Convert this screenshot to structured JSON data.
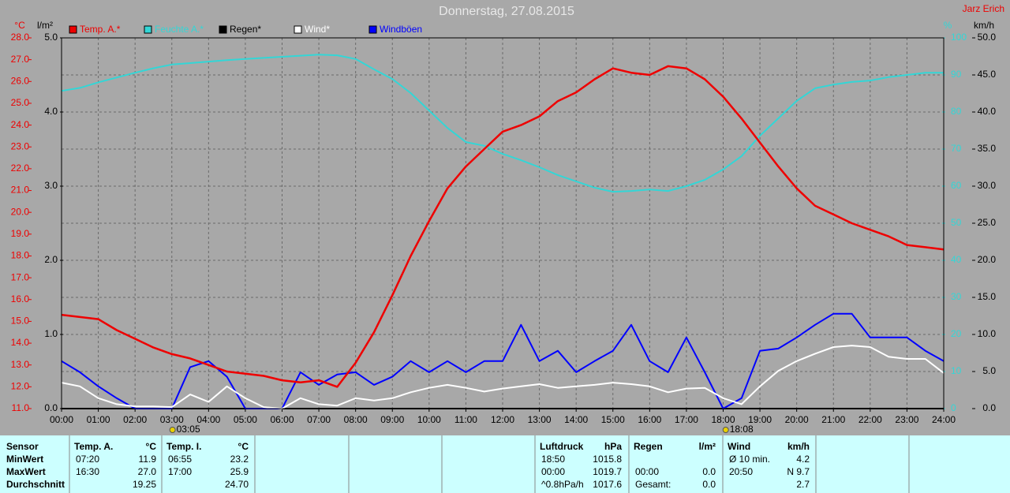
{
  "chart_data": {
    "type": "line",
    "title": "Donnerstag, 27.08.2015",
    "author": "Jarz Erich",
    "ylabel": "°C",
    "y2label": "%",
    "y3label": "l/m²",
    "y4label": "km/h",
    "ylim": [
      11,
      28
    ],
    "yticks": [
      {
        "value": 11,
        "label": "11.0"
      },
      {
        "value": 12,
        "label": "12.0"
      },
      {
        "value": 13,
        "label": "13.0"
      },
      {
        "value": 14,
        "label": "14.0"
      },
      {
        "value": 15,
        "label": "15.0"
      },
      {
        "value": 16,
        "label": "16.0"
      },
      {
        "value": 17,
        "label": "17.0"
      },
      {
        "value": 18,
        "label": "18.0"
      },
      {
        "value": 19,
        "label": "19.0"
      },
      {
        "value": 20,
        "label": "20.0"
      },
      {
        "value": 21,
        "label": "21.0"
      },
      {
        "value": 22,
        "label": "22.0"
      },
      {
        "value": 23,
        "label": "23.0"
      },
      {
        "value": 24,
        "label": "24.0"
      },
      {
        "value": 25,
        "label": "25.0"
      },
      {
        "value": 26,
        "label": "26.0"
      },
      {
        "value": 27,
        "label": "27.0"
      },
      {
        "value": 28,
        "label": "28.0"
      }
    ],
    "y2lim": [
      0,
      100
    ],
    "y2ticks": [
      0,
      10,
      20,
      30,
      40,
      50,
      60,
      70,
      80,
      90,
      100
    ],
    "y3lim": [
      0,
      5
    ],
    "y3ticks": [
      {
        "value": 0,
        "label": "0.0"
      },
      {
        "value": 1,
        "label": "1.0"
      },
      {
        "value": 2,
        "label": "2.0"
      },
      {
        "value": 3,
        "label": "3.0"
      },
      {
        "value": 4,
        "label": "4.0"
      },
      {
        "value": 5,
        "label": "5.0"
      }
    ],
    "y4lim": [
      0,
      50
    ],
    "y4ticks": [
      {
        "value": 0,
        "label": "0.0"
      },
      {
        "value": 5,
        "label": "5.0"
      },
      {
        "value": 10,
        "label": "10.0"
      },
      {
        "value": 15,
        "label": "15.0"
      },
      {
        "value": 20,
        "label": "20.0"
      },
      {
        "value": 25,
        "label": "25.0"
      },
      {
        "value": 30,
        "label": "30.0"
      },
      {
        "value": 35,
        "label": "35.0"
      },
      {
        "value": 40,
        "label": "40.0"
      },
      {
        "value": 45,
        "label": "45.0"
      },
      {
        "value": 50,
        "label": "50.0"
      }
    ],
    "xlim": [
      0,
      24
    ],
    "xticks": [
      {
        "value": 0,
        "label": "00:00"
      },
      {
        "value": 1,
        "label": "01:00"
      },
      {
        "value": 2,
        "label": "02:00"
      },
      {
        "value": 3,
        "label": "03:00"
      },
      {
        "value": 4,
        "label": "04:00"
      },
      {
        "value": 5,
        "label": "05:00"
      },
      {
        "value": 6,
        "label": "06:00"
      },
      {
        "value": 7,
        "label": "07:00"
      },
      {
        "value": 8,
        "label": "08:00"
      },
      {
        "value": 9,
        "label": "09:00"
      },
      {
        "value": 10,
        "label": "10:00"
      },
      {
        "value": 11,
        "label": "11:00"
      },
      {
        "value": 12,
        "label": "12:00"
      },
      {
        "value": 13,
        "label": "13:00"
      },
      {
        "value": 14,
        "label": "14:00"
      },
      {
        "value": 15,
        "label": "15:00"
      },
      {
        "value": 16,
        "label": "16:00"
      },
      {
        "value": 17,
        "label": "17:00"
      },
      {
        "value": 18,
        "label": "18:00"
      },
      {
        "value": 19,
        "label": "19:00"
      },
      {
        "value": 20,
        "label": "20:00"
      },
      {
        "value": 21,
        "label": "21:00"
      },
      {
        "value": 22,
        "label": "22:00"
      },
      {
        "value": 23,
        "label": "23:00"
      },
      {
        "value": 24,
        "label": "24:00"
      }
    ],
    "grid": true,
    "annotations": [
      {
        "label": "03:05",
        "x": 3.0833
      },
      {
        "label": "18:08",
        "x": 18.1333
      }
    ],
    "x": [
      0,
      0.5,
      1,
      1.5,
      2,
      2.5,
      3,
      3.5,
      4,
      4.5,
      5,
      5.5,
      6,
      6.5,
      7,
      7.5,
      8,
      8.5,
      9,
      9.5,
      10,
      10.5,
      11,
      11.5,
      12,
      12.5,
      13,
      13.5,
      14,
      14.5,
      15,
      15.5,
      16,
      16.5,
      17,
      17.5,
      18,
      18.5,
      19,
      19.5,
      20,
      20.5,
      21,
      21.5,
      22,
      22.5,
      23,
      23.5,
      24
    ],
    "series": [
      {
        "name": "Feuchte A.*",
        "color": "#33d6d6",
        "axis": "y2",
        "values": [
          85.7,
          86.5,
          88,
          89.3,
          90.6,
          91.8,
          92.8,
          93.2,
          93.6,
          94,
          94.3,
          94.6,
          94.9,
          95.2,
          95.5,
          95.3,
          94.3,
          91.5,
          88.9,
          85.1,
          80.4,
          75.7,
          71.9,
          70.9,
          68.7,
          67,
          65.1,
          63,
          61.3,
          59.6,
          58.5,
          58.7,
          59.1,
          58.7,
          60,
          61.7,
          64.5,
          68.1,
          73.6,
          78.3,
          83,
          86.4,
          87.4,
          88.1,
          88.5,
          89.4,
          90,
          90.6,
          90.6
        ]
      },
      {
        "name": "Regen*",
        "color": "#000000",
        "axis": "y3",
        "values": [
          0,
          0,
          0,
          0,
          0,
          0,
          0,
          0,
          0,
          0,
          0,
          0,
          0,
          0,
          0,
          0,
          0,
          0,
          0,
          0,
          0,
          0,
          0,
          0,
          0,
          0,
          0,
          0,
          0,
          0,
          0,
          0,
          0,
          0,
          0,
          0,
          0,
          0,
          0,
          0,
          0,
          0,
          0,
          0,
          0,
          0,
          0,
          0,
          0
        ]
      },
      {
        "name": "Windböen",
        "color": "#0000ff",
        "axis": "y4",
        "values": [
          6.4,
          4.9,
          3,
          1.4,
          0,
          0,
          0,
          5.6,
          6.4,
          4.3,
          0,
          0,
          0,
          4.9,
          3.2,
          4.6,
          4.9,
          3.2,
          4.3,
          6.4,
          4.9,
          6.4,
          4.9,
          6.4,
          6.4,
          11.3,
          6.4,
          7.8,
          4.9,
          6.4,
          7.8,
          11.3,
          6.4,
          4.9,
          9.6,
          4.9,
          0,
          1.4,
          7.8,
          8.1,
          9.6,
          11.3,
          12.8,
          12.8,
          9.6,
          9.6,
          9.6,
          7.8,
          6.4
        ]
      },
      {
        "name": "Wind*",
        "color": "#ffffff",
        "axis": "y4",
        "values": [
          3.5,
          3,
          1.4,
          0.6,
          0.3,
          0.3,
          0.2,
          1.9,
          0.9,
          3,
          1.4,
          0.2,
          0,
          1.4,
          0.6,
          0.4,
          1.4,
          1.1,
          1.4,
          2.2,
          2.8,
          3.2,
          2.8,
          2.3,
          2.7,
          3,
          3.3,
          2.8,
          3,
          3.2,
          3.5,
          3.3,
          3,
          2.2,
          2.7,
          2.8,
          1.4,
          0.6,
          3,
          5.1,
          6.4,
          7.4,
          8.3,
          8.5,
          8.3,
          7,
          6.7,
          6.7,
          4.8
        ]
      },
      {
        "name": "Temp. A.*",
        "color": "#ee0000",
        "axis": "y",
        "values": [
          15.3,
          15.2,
          15.1,
          14.6,
          14.2,
          13.8,
          13.5,
          13.3,
          13,
          12.7,
          12.6,
          12.5,
          12.3,
          12.2,
          12.3,
          12,
          13.1,
          14.5,
          16.2,
          18,
          19.6,
          21.1,
          22.1,
          22.9,
          23.7,
          24,
          24.4,
          25.1,
          25.5,
          26.1,
          26.6,
          26.4,
          26.3,
          26.7,
          26.6,
          26.1,
          25.3,
          24.3,
          23.2,
          22.1,
          21.1,
          20.3,
          19.9,
          19.5,
          19.2,
          18.9,
          18.5,
          18.4,
          18.3
        ]
      }
    ],
    "legend_order": [
      4,
      0,
      1,
      3,
      2
    ]
  },
  "table": {
    "row_labels": {
      "header": "Sensor",
      "min": "MinWert",
      "max": "MaxWert",
      "avg": "Durchschnitt"
    },
    "columns": [
      {
        "header": "Temp. A.",
        "unit": "°C",
        "min": {
          "note": "07:20",
          "value": "11.9"
        },
        "max": {
          "note": "16:30",
          "value": "27.0"
        },
        "avg": {
          "value": "19.25"
        }
      },
      {
        "header": "Temp. I.",
        "unit": "°C",
        "min": {
          "note": "06:55",
          "value": "23.2"
        },
        "max": {
          "note": "17:00",
          "value": "25.9"
        },
        "avg": {
          "value": "24.70"
        }
      },
      {
        "header": "Luftdruck",
        "unit": "hPa",
        "min": {
          "note": "18:50",
          "value": "1015.8"
        },
        "max": {
          "note": "00:00",
          "value": "1019.7"
        },
        "avg": {
          "note": "^0.8hPa/h",
          "value": "1017.6"
        }
      },
      {
        "header": "Regen",
        "unit": "l/m²",
        "max": {
          "note": "00:00",
          "value": "0.0"
        },
        "avg": {
          "note": "Gesamt:",
          "value": "0.0"
        }
      },
      {
        "header": "Wind",
        "unit": "km/h",
        "min": {
          "note": "Ø 10 min.",
          "value": "4.2"
        },
        "max": {
          "note": "20:50",
          "value": "N 9.7"
        },
        "avg": {
          "value": "2.7"
        }
      }
    ]
  }
}
